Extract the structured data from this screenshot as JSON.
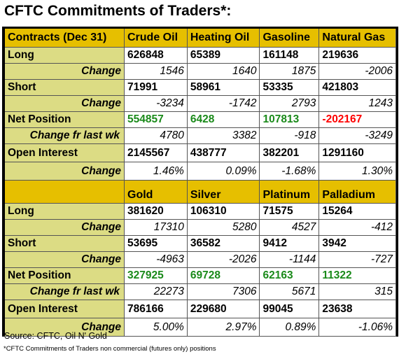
{
  "title": "CFTC Commitments of Traders*:",
  "chart_data": {
    "type": "table",
    "tables": [
      {
        "header_label": "Contracts (Dec 31)",
        "columns": [
          "Crude Oil",
          "Heating Oil",
          "Gasoline",
          "Natural Gas"
        ],
        "rows": [
          {
            "label": "Long",
            "values": [
              "626848",
              "65389",
              "161148",
              "219636"
            ]
          },
          {
            "label": "Change",
            "values": [
              "1546",
              "1640",
              "1875",
              "-2006"
            ]
          },
          {
            "label": "Short",
            "values": [
              "71991",
              "58961",
              "53335",
              "421803"
            ]
          },
          {
            "label": "Change",
            "values": [
              "-3234",
              "-1742",
              "2793",
              "1243"
            ]
          },
          {
            "label": "Net Position",
            "values": [
              "554857",
              "6428",
              "107813",
              "-202167"
            ]
          },
          {
            "label": "Change fr last wk",
            "values": [
              "4780",
              "3382",
              "-918",
              "-3249"
            ]
          },
          {
            "label": "Open Interest",
            "values": [
              "2145567",
              "438777",
              "382201",
              "1291160"
            ]
          },
          {
            "label": "Change",
            "values": [
              "1.46%",
              "0.09%",
              "-1.68%",
              "1.30%"
            ]
          }
        ]
      },
      {
        "header_label": "",
        "columns": [
          "Gold",
          "Silver",
          "Platinum",
          "Palladium"
        ],
        "rows": [
          {
            "label": "Long",
            "values": [
              "381620",
              "106310",
              "71575",
              "15264"
            ]
          },
          {
            "label": "Change",
            "values": [
              "17310",
              "5280",
              "4527",
              "-412"
            ]
          },
          {
            "label": "Short",
            "values": [
              "53695",
              "36582",
              "9412",
              "3942"
            ]
          },
          {
            "label": "Change",
            "values": [
              "-4963",
              "-2026",
              "-1144",
              "-727"
            ]
          },
          {
            "label": "Net Position",
            "values": [
              "327925",
              "69728",
              "62163",
              "11322"
            ]
          },
          {
            "label": "Change fr last wk",
            "values": [
              "22273",
              "7306",
              "5671",
              "315"
            ]
          },
          {
            "label": "Open Interest",
            "values": [
              "786166",
              "229680",
              "99045",
              "23638"
            ]
          },
          {
            "label": "Change",
            "values": [
              "5.00%",
              "2.97%",
              "0.89%",
              "-1.06%"
            ]
          }
        ]
      }
    ]
  },
  "colors": {
    "header": "#e6bf00",
    "label_cell": "#dcdc84",
    "positive_net": "#1a8a1a",
    "negative_net": "#ff0000"
  },
  "source": "Source: CFTC, Oil N' Gold",
  "footnote": "*CFTC Commitments of Traders non commercial (futures only) positions"
}
